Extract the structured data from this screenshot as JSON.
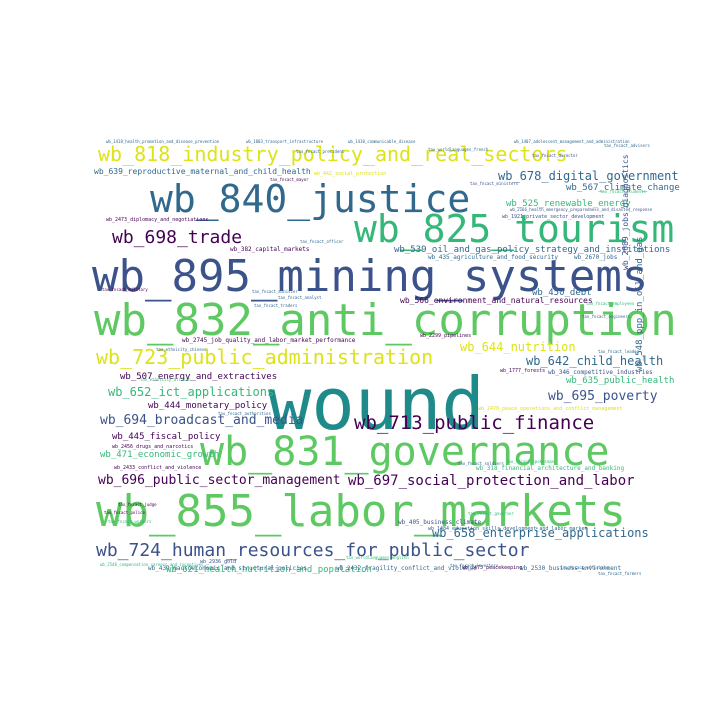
{
  "words": [
    {
      "text": "wound",
      "color": "#1f8a8a",
      "weight": 1.0
    },
    {
      "text": "wb_895_mining_systems",
      "color": "#3b528b",
      "weight": 0.8
    },
    {
      "text": "wb_832_anti_corruption",
      "color": "#5ec962",
      "weight": 0.75
    },
    {
      "text": "wb_855_labor_markets",
      "color": "#5ec962",
      "weight": 0.75
    },
    {
      "text": "wb_831_governance",
      "color": "#5ec962",
      "weight": 0.72
    },
    {
      "text": "wb_840_justice",
      "color": "#31688e",
      "weight": 0.7
    },
    {
      "text": "wb_825_tourism",
      "color": "#35b779",
      "weight": 0.68
    },
    {
      "text": "wb_818_industry_policy_and_real_sectors",
      "color": "#dde318",
      "weight": 0.45
    },
    {
      "text": "wb_723_public_administration",
      "color": "#dde318",
      "weight": 0.42
    },
    {
      "text": "wb_724_human_resources_for_public_sector",
      "color": "#3b528b",
      "weight": 0.4
    },
    {
      "text": "wb_713_public_finance",
      "color": "#440154",
      "weight": 0.38
    },
    {
      "text": "wb_698_trade",
      "color": "#440154",
      "weight": 0.36
    },
    {
      "text": "wb_697_social_protection_and_labor",
      "color": "#440154",
      "weight": 0.28
    },
    {
      "text": "wb_696_public_sector_management",
      "color": "#440154",
      "weight": 0.26
    },
    {
      "text": "wb_694_broadcast_and_media",
      "color": "#3b528b",
      "weight": 0.26
    },
    {
      "text": "wb_695_poverty",
      "color": "#3b528b",
      "weight": 0.26
    },
    {
      "text": "wb_652_ict_applications",
      "color": "#35b779",
      "weight": 0.24
    },
    {
      "text": "wb_678_digital_government",
      "color": "#31688e",
      "weight": 0.24
    },
    {
      "text": "wb_658_enterprise_applications",
      "color": "#31688e",
      "weight": 0.23
    },
    {
      "text": "wb_644_nutrition",
      "color": "#dde318",
      "weight": 0.2
    },
    {
      "text": "wb_642_child_health",
      "color": "#31688e",
      "weight": 0.2
    },
    {
      "text": "wb_539_oil_and_gas_policy_strategy_and_institutions",
      "color": "#31688e",
      "weight": 0.12
    },
    {
      "text": "wb_566_environment_and_natural_resources",
      "color": "#440154",
      "weight": 0.12
    },
    {
      "text": "wb_567_climate_change",
      "color": "#31688e",
      "weight": 0.12
    },
    {
      "text": "wb_525_renewable_energy",
      "color": "#35b779",
      "weight": 0.12
    },
    {
      "text": "wb_639_reproductive_maternal_and_child_health",
      "color": "#31688e",
      "weight": 0.1
    },
    {
      "text": "wb_507_energy_and_extractives",
      "color": "#440154",
      "weight": 0.12
    },
    {
      "text": "wb_444_monetary_policy",
      "color": "#440154",
      "weight": 0.12
    },
    {
      "text": "wb_445_fiscal_policy",
      "color": "#440154",
      "weight": 0.12
    },
    {
      "text": "wb_471_economic_growth",
      "color": "#35b779",
      "weight": 0.12
    },
    {
      "text": "wb_450_debt",
      "color": "#31688e",
      "weight": 0.12
    },
    {
      "text": "wb_635_public_health",
      "color": "#35b779",
      "weight": 0.12
    },
    {
      "text": "wb_621_health_nutrition_and_population",
      "color": "#35b779",
      "weight": 0.12
    },
    {
      "text": "wb_439_macroeconomic_and_structural_policies",
      "color": "#31688e",
      "weight": 0.1
    },
    {
      "text": "wb_2432_fragility_conflict_and_violence",
      "color": "#31688e",
      "weight": 0.09
    },
    {
      "text": "wb_2530_business_environment",
      "color": "#31688e",
      "weight": 0.09
    },
    {
      "text": "wb_2745_job_quality_and_labor_market_performance",
      "color": "#440154",
      "weight": 0.09
    },
    {
      "text": "wb_318_financial_architecture_and_banking",
      "color": "#35b779",
      "weight": 0.09
    },
    {
      "text": "wb_2433_conflict_and_violence",
      "color": "#440154",
      "weight": 0.08
    },
    {
      "text": "wb_405_business_climate",
      "color": "#3b528b",
      "weight": 0.08
    },
    {
      "text": "wb_2670_jobs",
      "color": "#31688e",
      "weight": 0.08
    },
    {
      "text": "wb_435_agriculture_and_food_security",
      "color": "#31688e",
      "weight": 0.08
    },
    {
      "text": "wb_1921_private_sector_development",
      "color": "#3b528b",
      "weight": 0.07
    },
    {
      "text": "wb_346_competitive_industries",
      "color": "#3b528b",
      "weight": 0.08
    },
    {
      "text": "wb_2456_drugs_and_narcotics",
      "color": "#440154",
      "weight": 0.07
    },
    {
      "text": "wb_2473_diplomacy_and_negotiations",
      "color": "#440154",
      "weight": 0.07
    },
    {
      "text": "wb_2299_pipelines",
      "color": "#440154",
      "weight": 0.07
    },
    {
      "text": "wb_1777_forests",
      "color": "#440154",
      "weight": 0.07
    },
    {
      "text": "wb_382_capital_markets",
      "color": "#440154",
      "weight": 0.07
    },
    {
      "text": "wb_442_social_protection",
      "color": "#dde318",
      "weight": 0.06
    },
    {
      "text": "wb_548_ppp_in_oil_and_gas",
      "color": "#31688e",
      "weight": 0.09,
      "vertical": true
    },
    {
      "text": "wb_2689_jobs_diagnostics",
      "color": "#3b528b",
      "weight": 0.08,
      "vertical": true
    },
    {
      "text": "wb_2936_gold",
      "color": "#3b528b",
      "weight": 0.07
    },
    {
      "text": "wb_2475_peacekeeping",
      "color": "#440154",
      "weight": 0.07
    },
    {
      "text": "wb_2470_peace_operations_and_conflict_management",
      "color": "#dde318",
      "weight": 0.06
    },
    {
      "text": "wb_1484_education_skills_development_and_labor_market",
      "color": "#31688e",
      "weight": 0.05
    },
    {
      "text": "wb_2166_health_emergency_preparedness_and_disaster_response",
      "color": "#3b528b",
      "weight": 0.05
    },
    {
      "text": "wb_1418_health_promotion_and_disease_prevention",
      "color": "#31688e",
      "weight": 0.05
    },
    {
      "text": "wb_1803_transport_infrastructure",
      "color": "#31688e",
      "weight": 0.05
    },
    {
      "text": "wb_1410_communicable_disease",
      "color": "#31688e",
      "weight": 0.05
    },
    {
      "text": "wb_1407_adolescent_management_and_administration",
      "color": "#31688e",
      "weight": 0.05
    },
    {
      "text": "wb_2548_compensation_careers_and_incentives",
      "color": "#35b779",
      "weight": 0.05
    },
    {
      "text": "tax_fncact_officials",
      "color": "#31688e",
      "weight": 0.05
    },
    {
      "text": "tax_fncact_farmers",
      "color": "#31688e",
      "weight": 0.05
    },
    {
      "text": "tax_fncact_employees",
      "color": "#35b779",
      "weight": 0.05
    },
    {
      "text": "tax_fncact_ministers",
      "color": "#3b528b",
      "weight": 0.05
    },
    {
      "text": "tax_fncact_police",
      "color": "#440154",
      "weight": 0.05
    },
    {
      "text": "tax_fncact_advisers",
      "color": "#31688e",
      "weight": 0.05
    },
    {
      "text": "tax_fncact_leader",
      "color": "#31688e",
      "weight": 0.05
    },
    {
      "text": "tax_fncact_students",
      "color": "#35b779",
      "weight": 0.05
    },
    {
      "text": "tax_fncact_investors",
      "color": "#31688e",
      "weight": 0.05
    },
    {
      "text": "tax_fncact_officer",
      "color": "#31688e",
      "weight": 0.05
    },
    {
      "text": "tax_fncact_traders",
      "color": "#31688e",
      "weight": 0.05
    },
    {
      "text": "tax_fncact_mayor",
      "color": "#440154",
      "weight": 0.05
    },
    {
      "text": "tax_fncact_engineers",
      "color": "#31688e",
      "weight": 0.05
    },
    {
      "text": "tax_fncact_workers",
      "color": "#35b779",
      "weight": 0.05
    },
    {
      "text": "tax_fncact_analyst",
      "color": "#31688e",
      "weight": 0.05
    },
    {
      "text": "tax_fncact_military",
      "color": "#440154",
      "weight": 0.05
    },
    {
      "text": "tax_fncact_governor",
      "color": "#35b779",
      "weight": 0.05
    },
    {
      "text": "tax_fncact_minister",
      "color": "#31688e",
      "weight": 0.05
    },
    {
      "text": "tax_worldlanguages_french",
      "color": "#31688e",
      "weight": 0.05
    },
    {
      "text": "tax_worldlanguages_english",
      "color": "#35b779",
      "weight": 0.05
    },
    {
      "text": "tax_ethnicity_chinese",
      "color": "#31688e",
      "weight": 0.05
    },
    {
      "text": "tax_ethnicity_african",
      "color": "#35b779",
      "weight": 0.05
    },
    {
      "text": "tax_fncact_president",
      "color": "#31688e",
      "weight": 0.05
    },
    {
      "text": "tax_fncact_judge",
      "color": "#440154",
      "weight": 0.05
    },
    {
      "text": "tax_fncact_authorities",
      "color": "#31688e",
      "weight": 0.05
    },
    {
      "text": "tax_fncact_soldiers",
      "color": "#31688e",
      "weight": 0.05
    },
    {
      "text": "tax_fncact_spokesman",
      "color": "#35b779",
      "weight": 0.05
    },
    {
      "text": "tax_fncact_director",
      "color": "#3b528b",
      "weight": 0.05
    }
  ]
}
